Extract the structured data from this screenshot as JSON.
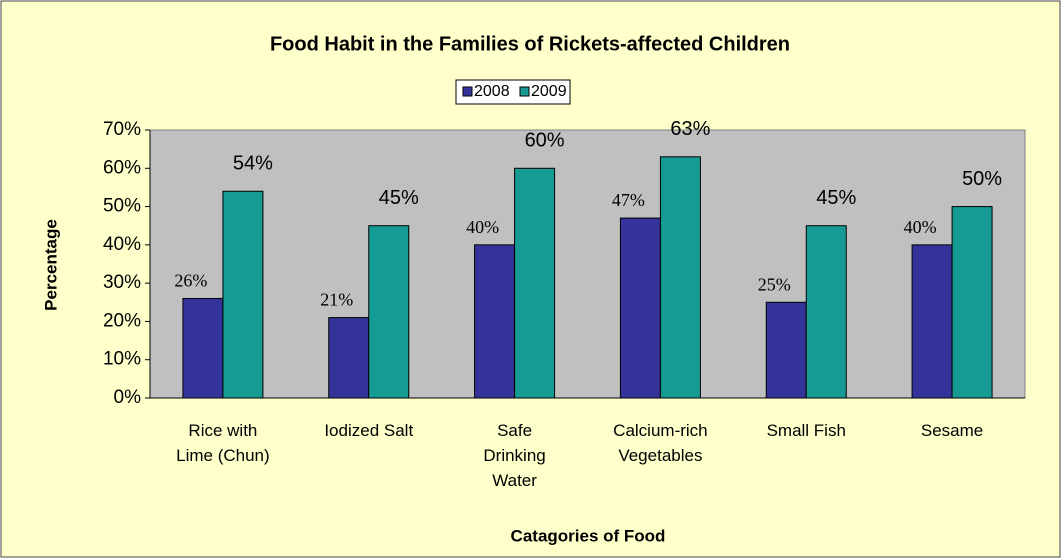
{
  "chart_data": {
    "type": "bar",
    "title": "Food Habit in the Families of Rickets-affected Children",
    "x_label": "Catagories of Food",
    "y_label": "Percentage",
    "categories": [
      "Rice with Lime (Chun)",
      "Iodized Salt",
      "Safe Drinking Water",
      "Calcium-rich Vegetables",
      "Small Fish",
      "Sesame"
    ],
    "series": [
      {
        "name": "2008",
        "color": "#333399",
        "values": [
          26,
          21,
          40,
          47,
          25,
          40
        ],
        "value_labels": [
          "26%",
          "21%",
          "40%",
          "47%",
          "25%",
          "40%"
        ]
      },
      {
        "name": "2009",
        "color": "#169a94",
        "values": [
          54,
          45,
          60,
          63,
          45,
          50
        ],
        "value_labels": [
          "54%",
          "45%",
          "60%",
          "63%",
          "45%",
          "50%"
        ]
      }
    ],
    "ylim": [
      0,
      70
    ],
    "yticks": [
      {
        "value": 0,
        "label": "0%"
      },
      {
        "value": 10,
        "label": "10%"
      },
      {
        "value": 20,
        "label": "20%"
      },
      {
        "value": 30,
        "label": "30%"
      },
      {
        "value": 40,
        "label": "40%"
      },
      {
        "value": 50,
        "label": "50%"
      },
      {
        "value": 60,
        "label": "60%"
      },
      {
        "value": 70,
        "label": "70%"
      }
    ],
    "grid": false,
    "legend": "top"
  }
}
